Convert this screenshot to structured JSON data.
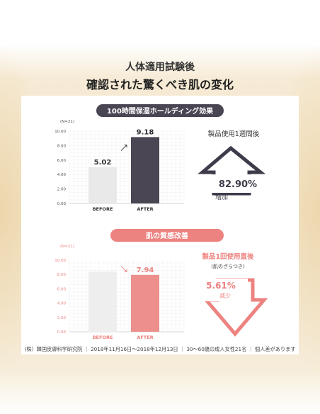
{
  "header": {
    "title": "人体適用試験後",
    "subtitle": "確認された驚くべき肌の変化"
  },
  "chart_data": [
    {
      "type": "bar",
      "title": "100時間保湿ホールディング効果",
      "n_label": "(N=21)",
      "categories": [
        "BEFORE",
        "AFTER"
      ],
      "values": [
        5.02,
        9.18
      ],
      "value_labels": [
        "5.02",
        "9.18"
      ],
      "ylim": [
        0,
        10
      ],
      "yticks": [
        "0.00",
        "2.00",
        "4.00",
        "6.00",
        "8.00",
        "10.00"
      ],
      "bar_colors": [
        "#e9e9e9",
        "#4b4654"
      ],
      "grid": true,
      "side_text": "製品使用1週間後",
      "change_value": "82.90%",
      "change_label": "増加",
      "accent_color": "#3f3b4a"
    },
    {
      "type": "bar",
      "title": "肌の質感改善",
      "n_label": "(N=21)",
      "categories": [
        "BEFORE",
        "AFTER"
      ],
      "values": [
        8.41,
        7.94
      ],
      "value_labels": [
        "8.41",
        "7.94"
      ],
      "ylim": [
        0,
        10
      ],
      "yticks": [
        "0.00",
        "2.00",
        "4.00",
        "6.00",
        "8.00",
        "10.00"
      ],
      "bar_colors": [
        "#eeeeee",
        "#ec8f8d"
      ],
      "grid": true,
      "side_text": "製品1回使用直後",
      "side_subtext": "(肌のざらつき)",
      "change_value": "5.61%",
      "change_label": "減少",
      "accent_color": "#ec8380"
    }
  ],
  "footnote": "(株）韓国皮膚科学研究院 ｜ 2018年11月16日〜2018年12月13日 ｜ 30〜60歳の成人女性21名 ｜ 個人差があります"
}
